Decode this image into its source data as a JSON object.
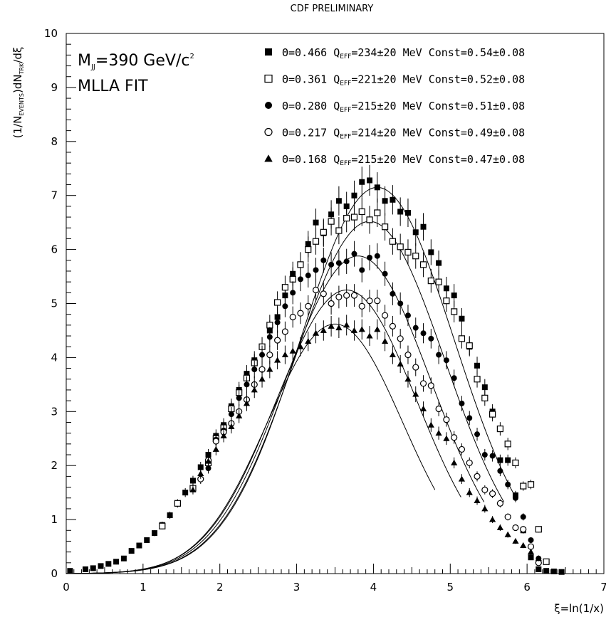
{
  "chart_data": {
    "type": "scatter",
    "title": "CDF PRELIMINARY",
    "xlabel": "ξ=ln(1/x)",
    "ylabel": {
      "prefix": "(1/N",
      "sub1": "EVENTS",
      "mid": ")dN",
      "sub2": "TRK",
      "suffix": "/dξ"
    },
    "xlim": [
      0,
      7
    ],
    "ylim": [
      0,
      10
    ],
    "x_ticks": [
      "0",
      "1",
      "2",
      "3",
      "4",
      "5",
      "6",
      "7"
    ],
    "y_ticks": [
      "0",
      "1",
      "2",
      "3",
      "4",
      "5",
      "6",
      "7",
      "8",
      "9",
      "10"
    ],
    "annotation_mass": {
      "prefix": "M",
      "sub": "JJ",
      "mid": "=390 GeV/c",
      "sup": "2"
    },
    "annotation_fit": "MLLA FIT",
    "series": [
      {
        "name": "Θ=0.466",
        "marker": "filled-square",
        "q_sub": "EFF",
        "legend_a": "Θ=0.466 Q",
        "legend_b": "=234±20 MeV Const=0.54±0.08",
        "curve": {
          "peak": 4.05,
          "amp": 7.15,
          "sigma": 1.0,
          "xmax": 5.85
        },
        "x": [
          0.05,
          0.25,
          0.35,
          0.45,
          0.55,
          0.65,
          0.75,
          0.85,
          0.95,
          1.05,
          1.15,
          1.25,
          1.35,
          1.45,
          1.55,
          1.65,
          1.75,
          1.85,
          1.95,
          2.05,
          2.15,
          2.25,
          2.35,
          2.45,
          2.55,
          2.65,
          2.75,
          2.85,
          2.95,
          3.05,
          3.15,
          3.25,
          3.35,
          3.45,
          3.55,
          3.65,
          3.75,
          3.85,
          3.95,
          4.05,
          4.15,
          4.25,
          4.35,
          4.45,
          4.55,
          4.65,
          4.75,
          4.85,
          4.95,
          5.05,
          5.15,
          5.25,
          5.35,
          5.45,
          5.55,
          5.65,
          5.75,
          5.85,
          5.95,
          6.05,
          6.15,
          6.25,
          6.35,
          6.45
        ],
        "y": [
          0.05,
          0.08,
          0.1,
          0.14,
          0.18,
          0.22,
          0.28,
          0.42,
          0.52,
          0.62,
          0.75,
          0.9,
          1.08,
          1.3,
          1.5,
          1.72,
          1.97,
          2.2,
          2.55,
          2.75,
          3.1,
          3.4,
          3.7,
          3.95,
          4.2,
          4.5,
          4.75,
          5.15,
          5.55,
          5.72,
          6.1,
          6.5,
          6.3,
          6.65,
          6.9,
          6.8,
          7.0,
          7.25,
          7.28,
          7.15,
          6.9,
          6.92,
          6.7,
          6.68,
          6.32,
          6.42,
          5.95,
          5.75,
          5.28,
          5.15,
          4.72,
          4.2,
          3.85,
          3.45,
          3.0,
          2.1,
          2.1,
          1.45,
          0.8,
          0.3,
          0.08,
          0.05,
          0.04,
          0.03
        ]
      },
      {
        "name": "Θ=0.361",
        "marker": "open-square",
        "q_sub": "EFF",
        "legend_a": "Θ=0.361 Q",
        "legend_b": "=221±20 MeV Const=0.52±0.08",
        "curve": {
          "peak": 3.95,
          "amp": 6.52,
          "sigma": 0.98,
          "xmax": 5.7
        },
        "x": [
          1.25,
          1.45,
          1.65,
          1.85,
          1.95,
          2.05,
          2.15,
          2.25,
          2.35,
          2.45,
          2.55,
          2.65,
          2.75,
          2.85,
          2.95,
          3.05,
          3.15,
          3.25,
          3.35,
          3.45,
          3.55,
          3.65,
          3.75,
          3.85,
          3.95,
          4.05,
          4.15,
          4.25,
          4.35,
          4.45,
          4.55,
          4.65,
          4.75,
          4.85,
          4.95,
          5.05,
          5.15,
          5.25,
          5.35,
          5.45,
          5.55,
          5.65,
          5.75,
          5.85,
          5.95,
          6.05,
          6.15,
          6.25
        ],
        "y": [
          0.88,
          1.3,
          1.58,
          2.05,
          2.5,
          2.7,
          3.05,
          3.35,
          3.62,
          3.9,
          4.2,
          4.6,
          5.02,
          5.3,
          5.45,
          5.72,
          6.0,
          6.15,
          6.32,
          6.52,
          6.35,
          6.58,
          6.6,
          6.7,
          6.55,
          6.68,
          6.42,
          6.15,
          6.05,
          5.95,
          5.88,
          5.72,
          5.42,
          5.4,
          5.05,
          4.85,
          4.35,
          4.22,
          3.6,
          3.25,
          2.95,
          2.68,
          2.4,
          2.05,
          1.62,
          1.65,
          0.82,
          0.22
        ]
      },
      {
        "name": "Θ=0.280",
        "marker": "filled-circle",
        "q_sub": "EFF",
        "legend_a": "Θ=0.280 Q",
        "legend_b": "=215±20 MeV Const=0.51±0.08",
        "curve": {
          "peak": 3.8,
          "amp": 5.88,
          "sigma": 0.95,
          "xmax": 5.45
        },
        "x": [
          1.85,
          1.95,
          2.05,
          2.15,
          2.25,
          2.35,
          2.45,
          2.55,
          2.65,
          2.75,
          2.85,
          2.95,
          3.05,
          3.15,
          3.25,
          3.35,
          3.45,
          3.55,
          3.65,
          3.75,
          3.85,
          3.95,
          4.05,
          4.15,
          4.25,
          4.35,
          4.45,
          4.55,
          4.65,
          4.75,
          4.85,
          4.95,
          5.05,
          5.15,
          5.25,
          5.35,
          5.45,
          5.55,
          5.65,
          5.75,
          5.85,
          5.95,
          6.05,
          6.15
        ],
        "y": [
          1.95,
          2.48,
          2.65,
          2.95,
          3.25,
          3.5,
          3.78,
          4.05,
          4.38,
          4.65,
          4.95,
          5.2,
          5.45,
          5.52,
          5.62,
          5.8,
          5.72,
          5.75,
          5.78,
          5.92,
          5.62,
          5.85,
          5.88,
          5.55,
          5.18,
          5.0,
          4.78,
          4.55,
          4.45,
          4.35,
          4.05,
          3.95,
          3.62,
          3.15,
          2.88,
          2.58,
          2.2,
          2.18,
          1.9,
          1.65,
          1.4,
          1.05,
          0.62,
          0.28
        ]
      },
      {
        "name": "Θ=0.217",
        "marker": "open-circle",
        "q_sub": "EFF",
        "legend_a": "Θ=0.217 Q",
        "legend_b": "=214±20 MeV Const=0.49±0.08",
        "curve": {
          "peak": 3.65,
          "amp": 5.25,
          "sigma": 0.92,
          "xmax": 5.15
        },
        "x": [
          1.75,
          1.85,
          1.95,
          2.05,
          2.15,
          2.25,
          2.35,
          2.45,
          2.55,
          2.65,
          2.75,
          2.85,
          2.95,
          3.05,
          3.15,
          3.25,
          3.35,
          3.45,
          3.55,
          3.65,
          3.75,
          3.85,
          3.95,
          4.05,
          4.15,
          4.25,
          4.35,
          4.45,
          4.55,
          4.65,
          4.75,
          4.85,
          4.95,
          5.05,
          5.15,
          5.25,
          5.35,
          5.45,
          5.55,
          5.65,
          5.75,
          5.85,
          5.95,
          6.05,
          6.15
        ],
        "y": [
          1.75,
          2.1,
          2.45,
          2.62,
          2.78,
          3.0,
          3.22,
          3.5,
          3.78,
          4.05,
          4.32,
          4.48,
          4.75,
          4.82,
          4.95,
          5.25,
          5.18,
          5.0,
          5.12,
          5.15,
          5.15,
          4.95,
          5.05,
          5.05,
          4.78,
          4.58,
          4.35,
          4.05,
          3.82,
          3.52,
          3.48,
          3.05,
          2.85,
          2.52,
          2.3,
          2.05,
          1.8,
          1.55,
          1.48,
          1.3,
          1.05,
          0.85,
          0.82,
          0.5,
          0.2
        ]
      },
      {
        "name": "Θ=0.168",
        "marker": "filled-triangle",
        "q_sub": "EFF",
        "legend_a": "Θ=0.168 Q",
        "legend_b": "=215±20 MeV Const=0.47±0.08",
        "curve": {
          "peak": 3.5,
          "amp": 4.62,
          "sigma": 0.88,
          "xmax": 4.8
        },
        "x": [
          1.65,
          1.75,
          1.85,
          1.95,
          2.05,
          2.15,
          2.25,
          2.35,
          2.45,
          2.55,
          2.65,
          2.75,
          2.85,
          2.95,
          3.05,
          3.15,
          3.25,
          3.35,
          3.45,
          3.55,
          3.65,
          3.75,
          3.85,
          3.95,
          4.05,
          4.15,
          4.25,
          4.35,
          4.45,
          4.55,
          4.65,
          4.75,
          4.85,
          4.95,
          5.05,
          5.15,
          5.25,
          5.35,
          5.45,
          5.55,
          5.65,
          5.75,
          5.85,
          5.95,
          6.05,
          6.15
        ],
        "y": [
          1.55,
          1.85,
          2.08,
          2.3,
          2.55,
          2.72,
          2.92,
          3.15,
          3.4,
          3.6,
          3.78,
          3.95,
          4.05,
          4.12,
          4.2,
          4.3,
          4.45,
          4.5,
          4.58,
          4.55,
          4.6,
          4.5,
          4.52,
          4.4,
          4.52,
          4.3,
          4.05,
          3.88,
          3.6,
          3.32,
          3.05,
          2.75,
          2.6,
          2.5,
          2.05,
          1.75,
          1.5,
          1.35,
          1.2,
          1.0,
          0.85,
          0.72,
          0.6,
          0.52,
          0.4,
          0.28
        ]
      }
    ]
  }
}
